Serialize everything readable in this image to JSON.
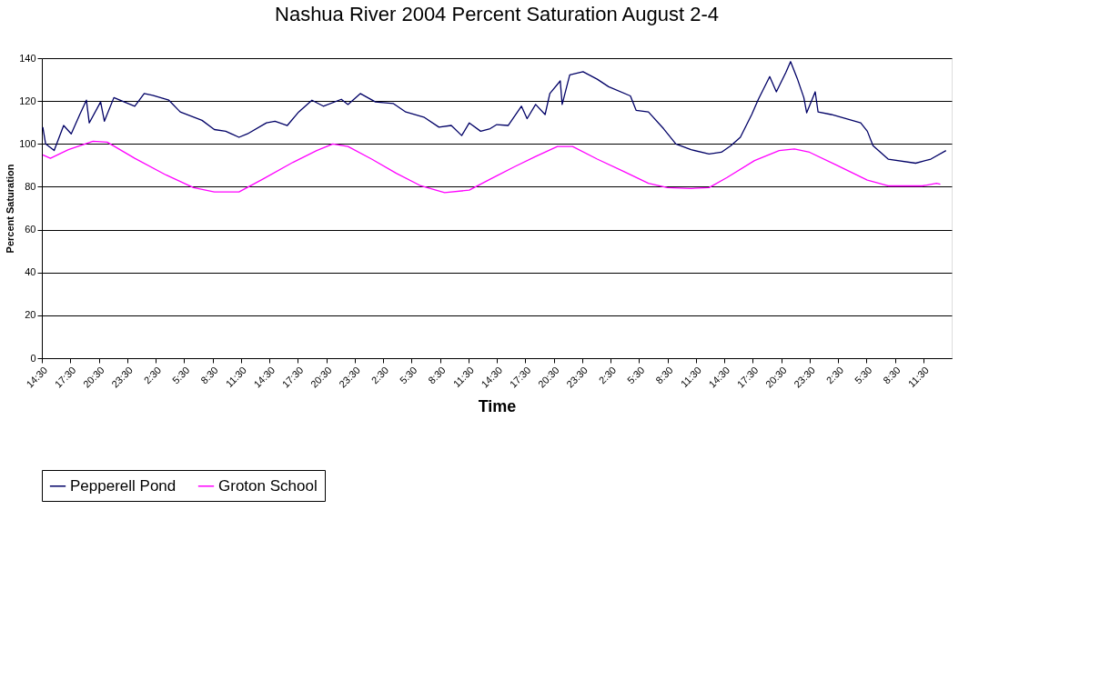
{
  "chart_data": {
    "type": "line",
    "title": "Nashua River 2004 Percent Saturation  August 2-4",
    "xlabel": "Time",
    "ylabel": "Percent Saturation",
    "xlim": [
      "2004-08-02T14:30",
      "2004-08-06T14:30"
    ],
    "ylim": [
      0,
      140
    ],
    "yticks": [
      0,
      20,
      40,
      60,
      80,
      100,
      120,
      140
    ],
    "xticks": [
      {
        "value": "2004-08-02T14:30",
        "label": "14:30"
      },
      {
        "value": "2004-08-02T17:30",
        "label": "17:30"
      },
      {
        "value": "2004-08-02T20:30",
        "label": "20:30"
      },
      {
        "value": "2004-08-02T23:30",
        "label": "23:30"
      },
      {
        "value": "2004-08-03T02:30",
        "label": "2:30"
      },
      {
        "value": "2004-08-03T05:30",
        "label": "5:30"
      },
      {
        "value": "2004-08-03T08:30",
        "label": "8:30"
      },
      {
        "value": "2004-08-03T11:30",
        "label": "11:30"
      },
      {
        "value": "2004-08-03T14:30",
        "label": "14:30"
      },
      {
        "value": "2004-08-03T17:30",
        "label": "17:30"
      },
      {
        "value": "2004-08-03T20:30",
        "label": "20:30"
      },
      {
        "value": "2004-08-03T23:30",
        "label": "23:30"
      },
      {
        "value": "2004-08-04T02:30",
        "label": "2:30"
      },
      {
        "value": "2004-08-04T05:30",
        "label": "5:30"
      },
      {
        "value": "2004-08-04T08:30",
        "label": "8:30"
      },
      {
        "value": "2004-08-04T11:30",
        "label": "11:30"
      },
      {
        "value": "2004-08-04T14:30",
        "label": "14:30"
      },
      {
        "value": "2004-08-04T17:30",
        "label": "17:30"
      },
      {
        "value": "2004-08-04T20:30",
        "label": "20:30"
      },
      {
        "value": "2004-08-04T23:30",
        "label": "23:30"
      },
      {
        "value": "2004-08-05T02:30",
        "label": "2:30"
      },
      {
        "value": "2004-08-05T05:30",
        "label": "5:30"
      },
      {
        "value": "2004-08-05T08:30",
        "label": "8:30"
      },
      {
        "value": "2004-08-05T11:30",
        "label": "11:30"
      },
      {
        "value": "2004-08-05T14:30",
        "label": "14:30"
      },
      {
        "value": "2004-08-05T17:30",
        "label": "17:30"
      },
      {
        "value": "2004-08-05T20:30",
        "label": "20:30"
      },
      {
        "value": "2004-08-05T23:30",
        "label": "23:30"
      },
      {
        "value": "2004-08-06T02:30",
        "label": "2:30"
      },
      {
        "value": "2004-08-06T05:30",
        "label": "5:30"
      },
      {
        "value": "2004-08-06T08:30",
        "label": "8:30"
      },
      {
        "value": "2004-08-06T11:30",
        "label": "11:30"
      }
    ],
    "grid": "y",
    "legend": "bottom",
    "line_style": "solid",
    "marker": "none",
    "series": [
      {
        "name": "Pepperell Pond",
        "color": "#000066",
        "x": [
          "2004-08-02T14:36",
          "2004-08-02T14:54",
          "2004-08-02T15:48",
          "2004-08-02T16:48",
          "2004-08-02T17:36",
          "2004-08-02T18:30",
          "2004-08-02T19:12",
          "2004-08-02T19:30",
          "2004-08-02T20:42",
          "2004-08-02T21:06",
          "2004-08-02T22:06",
          "2004-08-03T00:18",
          "2004-08-03T01:18",
          "2004-08-03T02:12",
          "2004-08-03T03:54",
          "2004-08-03T05:06",
          "2004-08-03T07:24",
          "2004-08-03T08:42",
          "2004-08-03T09:54",
          "2004-08-03T11:18",
          "2004-08-03T12:12",
          "2004-08-03T14:12",
          "2004-08-03T15:06",
          "2004-08-03T16:24",
          "2004-08-03T17:36",
          "2004-08-03T19:00",
          "2004-08-03T20:12",
          "2004-08-03T22:06",
          "2004-08-03T22:48",
          "2004-08-04T00:06",
          "2004-08-04T01:42",
          "2004-08-04T03:36",
          "2004-08-04T04:54",
          "2004-08-04T06:48",
          "2004-08-04T08:24",
          "2004-08-04T09:42",
          "2004-08-04T10:48",
          "2004-08-04T11:36",
          "2004-08-04T12:48",
          "2004-08-04T13:48",
          "2004-08-04T14:30",
          "2004-08-04T15:42",
          "2004-08-04T17:06",
          "2004-08-04T17:42",
          "2004-08-04T18:36",
          "2004-08-04T19:36",
          "2004-08-04T20:06",
          "2004-08-04T21:12",
          "2004-08-04T21:24",
          "2004-08-04T22:12",
          "2004-08-04T23:36",
          "2004-08-05T01:06",
          "2004-08-05T02:18",
          "2004-08-05T04:36",
          "2004-08-05T05:12",
          "2004-08-05T06:30",
          "2004-08-05T08:06",
          "2004-08-05T09:24",
          "2004-08-05T11:00",
          "2004-08-05T12:54",
          "2004-08-05T14:12",
          "2004-08-05T15:12",
          "2004-08-05T16:12",
          "2004-08-05T17:24",
          "2004-08-05T18:06",
          "2004-08-05T19:18",
          "2004-08-05T20:00",
          "2004-08-05T21:00",
          "2004-08-05T21:30",
          "2004-08-05T22:12",
          "2004-08-05T22:54",
          "2004-08-05T23:12",
          "2004-08-06T00:06",
          "2004-08-06T00:24",
          "2004-08-06T01:48",
          "2004-08-06T04:54",
          "2004-08-06T05:36",
          "2004-08-06T06:12",
          "2004-08-06T07:48",
          "2004-08-06T10:42",
          "2004-08-06T12:18",
          "2004-08-06T13:54"
        ],
        "values": [
          107.8,
          100,
          96.9,
          108.6,
          104.7,
          113.7,
          120.4,
          109.8,
          119.6,
          110.6,
          121.6,
          117.6,
          123.5,
          122.7,
          120.4,
          114.9,
          111,
          106.7,
          105.9,
          103.1,
          104.7,
          109.8,
          110.6,
          108.6,
          114.9,
          120.4,
          117.6,
          120.8,
          118.4,
          123.5,
          119.6,
          118.8,
          114.9,
          112.5,
          107.8,
          108.6,
          103.9,
          109.8,
          105.9,
          107.1,
          109,
          108.6,
          117.6,
          111.8,
          118.4,
          113.7,
          123.5,
          129.4,
          118.4,
          132.2,
          133.7,
          130.2,
          126.7,
          122.4,
          115.7,
          114.9,
          107.1,
          100,
          97.3,
          95.3,
          96.1,
          99.2,
          103.1,
          113.7,
          120.8,
          131.4,
          124.3,
          133.3,
          138.4,
          130.6,
          121.6,
          114.5,
          124.3,
          114.9,
          113.7,
          109.8,
          105.9,
          99.2,
          92.9,
          91,
          92.9,
          96.9
        ]
      },
      {
        "name": "Groton School",
        "color": "#ff00ff",
        "x": [
          "2004-08-02T14:36",
          "2004-08-02T15:24",
          "2004-08-02T17:18",
          "2004-08-02T19:54",
          "2004-08-02T21:24",
          "2004-08-03T00:18",
          "2004-08-03T03:36",
          "2004-08-03T06:30",
          "2004-08-03T08:42",
          "2004-08-03T11:18",
          "2004-08-03T13:48",
          "2004-08-03T17:00",
          "2004-08-03T19:30",
          "2004-08-03T21:12",
          "2004-08-03T22:48",
          "2004-08-04T01:18",
          "2004-08-04T03:54",
          "2004-08-04T06:30",
          "2004-08-04T09:00",
          "2004-08-04T11:36",
          "2004-08-04T13:48",
          "2004-08-04T14:30",
          "2004-08-04T16:24",
          "2004-08-04T18:36",
          "2004-08-04T20:54",
          "2004-08-04T22:30",
          "2004-08-05T01:06",
          "2004-08-05T03:54",
          "2004-08-05T06:30",
          "2004-08-05T08:30",
          "2004-08-05T11:00",
          "2004-08-05T12:54",
          "2004-08-05T14:48",
          "2004-08-05T17:42",
          "2004-08-05T20:18",
          "2004-08-05T21:54",
          "2004-08-05T23:30",
          "2004-08-06T02:18",
          "2004-08-06T05:36",
          "2004-08-06T07:48",
          "2004-08-06T11:24",
          "2004-08-06T12:54",
          "2004-08-06T13:18"
        ],
        "values": [
          94.9,
          93.3,
          97.3,
          101.2,
          100.8,
          93.3,
          85.5,
          79.6,
          77.6,
          77.6,
          83.5,
          91.4,
          96.9,
          100,
          98.8,
          92.9,
          86.3,
          80.4,
          77.3,
          78.4,
          83.5,
          85.1,
          89.4,
          94.1,
          98.8,
          98.8,
          92.9,
          87.1,
          81.6,
          79.6,
          79.2,
          79.6,
          84.3,
          92.2,
          96.9,
          97.6,
          96.1,
          90.2,
          83.1,
          80.4,
          80.4,
          81.6,
          81.2
        ]
      }
    ]
  }
}
